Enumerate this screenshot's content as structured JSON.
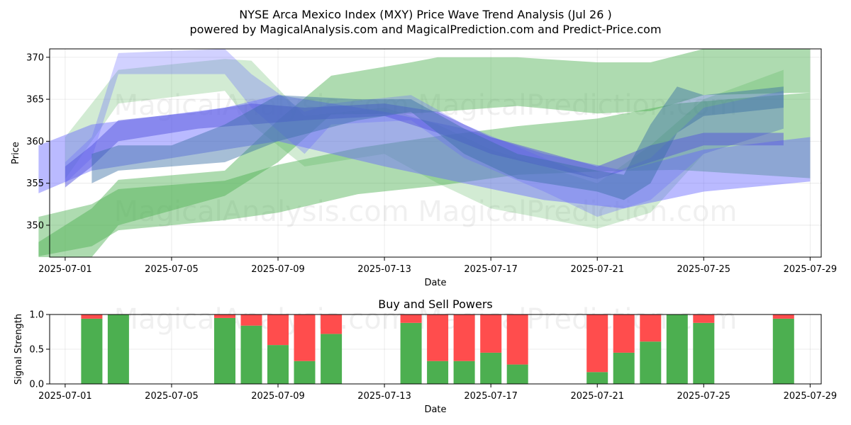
{
  "chart_data": [
    {
      "type": "area",
      "title": "NYSE Arca Mexico Index (MXY) Price Wave Trend Analysis (Jul 26 )",
      "subtitle": "powered by MagicalAnalysis.com and MagicalPrediction.com and Predict-Price.com",
      "xlabel": "Date",
      "ylabel": "Price",
      "ylim": [
        346.2,
        371.0
      ],
      "xlim": [
        "2025-06-30T10:00",
        "2025-07-29T10:00"
      ],
      "x_ticks": [
        "2025-07-01",
        "2025-07-05",
        "2025-07-09",
        "2025-07-13",
        "2025-07-17",
        "2025-07-21",
        "2025-07-25",
        "2025-07-29"
      ],
      "y_ticks": [
        350,
        355,
        360,
        365,
        370
      ],
      "grid": true,
      "watermark": "MagicalAnalysis.com    MagicalPrediction.com",
      "bands": [
        {
          "color": "#4caf50",
          "alpha": 0.45,
          "x": [
            "2025-06-30",
            "2025-07-02",
            "2025-07-03",
            "2025-07-07",
            "2025-07-09",
            "2025-07-12",
            "2025-07-15",
            "2025-07-18",
            "2025-07-21",
            "2025-07-24",
            "2025-07-29"
          ],
          "upper": [
            351.0,
            352.5,
            354.3,
            355.3,
            357.2,
            359.2,
            360.6,
            361.8,
            362.7,
            364.5,
            365.8
          ],
          "lower": [
            346.3,
            347.5,
            349.4,
            350.6,
            351.5,
            353.7,
            354.7,
            356.0,
            356.4,
            356.6,
            355.6
          ]
        },
        {
          "color": "#4caf50",
          "alpha": 0.45,
          "x": [
            "2025-06-30",
            "2025-07-02",
            "2025-07-03",
            "2025-07-07",
            "2025-07-09",
            "2025-07-11",
            "2025-07-14",
            "2025-07-15",
            "2025-07-18",
            "2025-07-21",
            "2025-07-23",
            "2025-07-25",
            "2025-07-29"
          ],
          "upper": [
            348.0,
            352.0,
            355.4,
            356.5,
            362.5,
            367.8,
            369.4,
            370.0,
            370.0,
            369.4,
            369.4,
            371.0,
            371.0
          ],
          "lower": [
            346.2,
            346.2,
            350.0,
            353.5,
            357.5,
            363.2,
            363.3,
            363.5,
            364.2,
            363.3,
            363.6,
            365.5,
            365.8
          ]
        },
        {
          "color": "#4caf50",
          "alpha": 0.25,
          "x": [
            "2025-07-01",
            "2025-07-03",
            "2025-07-07",
            "2025-07-08",
            "2025-07-10",
            "2025-07-13",
            "2025-07-15",
            "2025-07-17",
            "2025-07-21",
            "2025-07-23",
            "2025-07-25",
            "2025-07-28"
          ],
          "upper": [
            360.5,
            368.5,
            369.8,
            369.6,
            363.0,
            364.0,
            362.0,
            359.0,
            355.0,
            359.5,
            365.0,
            368.5
          ],
          "lower": [
            355.5,
            364.5,
            366.0,
            362.0,
            357.0,
            358.5,
            355.0,
            352.0,
            349.6,
            351.5,
            358.5,
            361.5
          ]
        },
        {
          "color": "#6666ff",
          "alpha": 0.45,
          "x": [
            "2025-06-30",
            "2025-07-02",
            "2025-07-07",
            "2025-07-09",
            "2025-07-13",
            "2025-07-16",
            "2025-07-19",
            "2025-07-22",
            "2025-07-25",
            "2025-07-29"
          ],
          "upper": [
            359.5,
            362.0,
            364.0,
            365.5,
            363.5,
            361.5,
            358.5,
            356.5,
            359.0,
            360.5
          ],
          "lower": [
            353.8,
            356.5,
            359.0,
            360.0,
            357.0,
            355.0,
            353.0,
            352.0,
            354.0,
            355.2
          ]
        },
        {
          "color": "#6666ff",
          "alpha": 0.3,
          "x": [
            "2025-07-01",
            "2025-07-02",
            "2025-07-03",
            "2025-07-07",
            "2025-07-08",
            "2025-07-10",
            "2025-07-11",
            "2025-07-14",
            "2025-07-16",
            "2025-07-19",
            "2025-07-21",
            "2025-07-23",
            "2025-07-25",
            "2025-07-28"
          ],
          "upper": [
            357.5,
            360.5,
            370.5,
            371.0,
            368.0,
            363.5,
            364.5,
            365.5,
            362.0,
            358.0,
            355.5,
            358.0,
            364.0,
            366.0
          ],
          "lower": [
            355.0,
            358.0,
            368.0,
            368.0,
            364.0,
            358.5,
            362.0,
            362.5,
            358.0,
            354.0,
            351.0,
            353.0,
            358.5,
            361.5
          ]
        },
        {
          "color": "#5555dd",
          "alpha": 0.5,
          "x": [
            "2025-07-01",
            "2025-07-02",
            "2025-07-03",
            "2025-07-06",
            "2025-07-08",
            "2025-07-10",
            "2025-07-13",
            "2025-07-15",
            "2025-07-17",
            "2025-07-21",
            "2025-07-23",
            "2025-07-25",
            "2025-07-28"
          ],
          "upper": [
            357.0,
            359.5,
            362.5,
            363.5,
            364.5,
            364.0,
            364.5,
            363.5,
            360.5,
            357.0,
            359.5,
            361.0,
            361.0
          ],
          "lower": [
            354.5,
            357.0,
            360.0,
            361.5,
            362.0,
            362.5,
            363.0,
            361.0,
            358.5,
            355.5,
            357.5,
            359.5,
            359.5
          ]
        },
        {
          "color": "#3a6ea5",
          "alpha": 0.45,
          "x": [
            "2025-07-02",
            "2025-07-03",
            "2025-07-05",
            "2025-07-07",
            "2025-07-09",
            "2025-07-12",
            "2025-07-14",
            "2025-07-16",
            "2025-07-18",
            "2025-07-21",
            "2025-07-22",
            "2025-07-23",
            "2025-07-24",
            "2025-07-25",
            "2025-07-28"
          ],
          "upper": [
            358.5,
            359.5,
            359.5,
            362.0,
            365.5,
            365.0,
            365.0,
            361.5,
            358.5,
            356.5,
            356.0,
            362.0,
            366.5,
            365.5,
            366.5
          ],
          "lower": [
            355.0,
            356.5,
            357.0,
            357.5,
            360.0,
            362.5,
            363.5,
            358.5,
            355.5,
            354.0,
            353.0,
            355.0,
            361.0,
            363.0,
            364.0
          ]
        }
      ]
    },
    {
      "type": "bar",
      "title": "Buy and Sell Powers",
      "xlabel": "Date",
      "ylabel": "Signal Strength",
      "ylim": [
        0,
        1.0
      ],
      "xlim": [
        "2025-06-30T10:00",
        "2025-07-29T10:00"
      ],
      "x_ticks": [
        "2025-07-01",
        "2025-07-05",
        "2025-07-09",
        "2025-07-13",
        "2025-07-17",
        "2025-07-21",
        "2025-07-25",
        "2025-07-29"
      ],
      "y_ticks": [
        "0.0",
        "0.5",
        "1.0"
      ],
      "grid": true,
      "buy_color": "#4caf50",
      "sell_color": "#ff4d4d",
      "categories": [
        "2025-07-02",
        "2025-07-03",
        "2025-07-07",
        "2025-07-08",
        "2025-07-09",
        "2025-07-10",
        "2025-07-11",
        "2025-07-14",
        "2025-07-15",
        "2025-07-16",
        "2025-07-17",
        "2025-07-18",
        "2025-07-21",
        "2025-07-22",
        "2025-07-23",
        "2025-07-24",
        "2025-07-25",
        "2025-07-28"
      ],
      "series": [
        {
          "values": [
            0.94,
            1.0,
            0.95,
            0.84,
            0.56,
            0.33,
            0.72,
            0.88,
            0.33,
            0.33,
            0.45,
            0.28,
            0.17,
            0.45,
            0.61,
            1.0,
            0.88,
            0.94
          ]
        },
        {
          "values": [
            0.06,
            0.0,
            0.05,
            0.16,
            0.44,
            0.67,
            0.28,
            0.12,
            0.67,
            0.67,
            0.55,
            0.72,
            0.83,
            0.55,
            0.39,
            0.0,
            0.12,
            0.06
          ]
        }
      ]
    }
  ]
}
